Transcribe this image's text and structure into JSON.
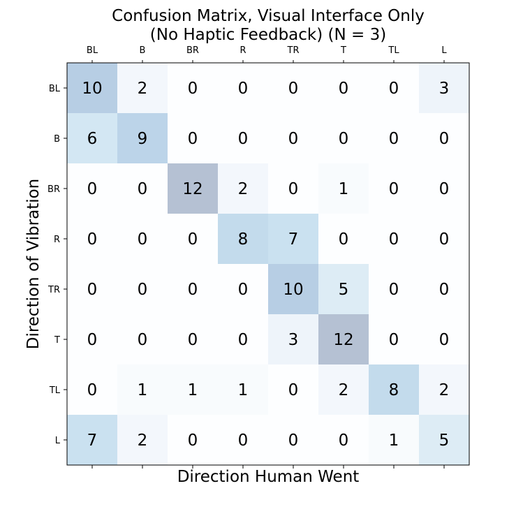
{
  "chart_data": {
    "type": "heatmap",
    "title_lines": [
      "Confusion Matrix, Visual Interface Only",
      "(No Haptic Feedback) (N = 3)"
    ],
    "xlabel": "Direction Human Went",
    "ylabel": "Direction of Vibration",
    "x_categories": [
      "BL",
      "B",
      "BR",
      "R",
      "TR",
      "T",
      "TL",
      "L"
    ],
    "y_categories": [
      "BL",
      "B",
      "BR",
      "R",
      "TR",
      "T",
      "TL",
      "L"
    ],
    "matrix": [
      [
        10,
        2,
        0,
        0,
        0,
        0,
        0,
        3
      ],
      [
        6,
        9,
        0,
        0,
        0,
        0,
        0,
        0
      ],
      [
        0,
        0,
        12,
        2,
        0,
        1,
        0,
        0
      ],
      [
        0,
        0,
        0,
        8,
        7,
        0,
        0,
        0
      ],
      [
        0,
        0,
        0,
        0,
        10,
        5,
        0,
        0
      ],
      [
        0,
        0,
        0,
        0,
        3,
        12,
        0,
        0
      ],
      [
        0,
        1,
        1,
        1,
        0,
        2,
        8,
        2
      ],
      [
        7,
        2,
        0,
        0,
        0,
        0,
        1,
        5
      ]
    ],
    "value_range": [
      0,
      12
    ],
    "colormap": {
      "low": "#f7fbff",
      "high": "#08306b",
      "alpha": 0.3
    },
    "x_ticks_position": "top"
  }
}
